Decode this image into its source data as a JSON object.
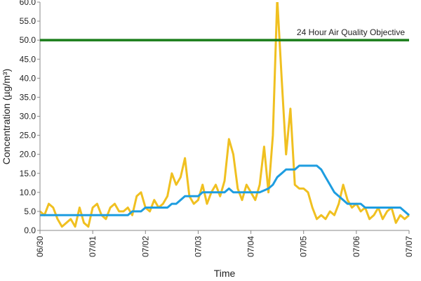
{
  "chart_data": {
    "type": "line",
    "ylabel": "Concentration (µg/m³)",
    "xlabel": "Time",
    "xlim": [
      0,
      168
    ],
    "xticks": [
      {
        "value": 0,
        "label": "06/30"
      },
      {
        "value": 24,
        "label": "07/01"
      },
      {
        "value": 48,
        "label": "07/02"
      },
      {
        "value": 72,
        "label": "07/03"
      },
      {
        "value": 96,
        "label": "07/04"
      },
      {
        "value": 120,
        "label": "07/05"
      },
      {
        "value": 144,
        "label": "07/06"
      },
      {
        "value": 168,
        "label": "07/07"
      }
    ],
    "ylim": [
      0,
      60
    ],
    "yticks": [
      {
        "value": 0,
        "label": "0.0"
      },
      {
        "value": 5,
        "label": "5.0"
      },
      {
        "value": 10,
        "label": "10.0"
      },
      {
        "value": 15,
        "label": "15.0"
      },
      {
        "value": 20,
        "label": "20.0"
      },
      {
        "value": 25,
        "label": "25.0"
      },
      {
        "value": 30,
        "label": "30.0"
      },
      {
        "value": 35,
        "label": "35.0"
      },
      {
        "value": 40,
        "label": "40.0"
      },
      {
        "value": 45,
        "label": "45.0"
      },
      {
        "value": 50,
        "label": "50.0"
      },
      {
        "value": 55,
        "label": "55.0"
      },
      {
        "value": 60,
        "label": "60.0"
      }
    ],
    "x": [
      0,
      2,
      4,
      6,
      8,
      10,
      12,
      14,
      16,
      18,
      20,
      22,
      24,
      26,
      28,
      30,
      32,
      34,
      36,
      38,
      40,
      42,
      44,
      46,
      48,
      50,
      52,
      54,
      56,
      58,
      60,
      62,
      64,
      66,
      68,
      70,
      72,
      74,
      76,
      78,
      80,
      82,
      84,
      86,
      88,
      90,
      92,
      94,
      96,
      98,
      100,
      102,
      104,
      106,
      108,
      110,
      112,
      114,
      116,
      118,
      120,
      122,
      124,
      126,
      128,
      130,
      132,
      134,
      136,
      138,
      140,
      142,
      144,
      146,
      148,
      150,
      152,
      154,
      156,
      158,
      160,
      162,
      164,
      166,
      168
    ],
    "series": [
      {
        "color": "#f0c020",
        "values": [
          5,
          4,
          7,
          6,
          3,
          1,
          2,
          3,
          1,
          6,
          2,
          1,
          6,
          7,
          4,
          3,
          6,
          7,
          5,
          5,
          6,
          4,
          9,
          10,
          6,
          5,
          8,
          6,
          7,
          9,
          15,
          12,
          14,
          19,
          9,
          7,
          8,
          12,
          7,
          10,
          12,
          9,
          13,
          24,
          20,
          11,
          8,
          12,
          10,
          8,
          12,
          22,
          10,
          25,
          61,
          40,
          20,
          32,
          12,
          11,
          11,
          10,
          6,
          3,
          4,
          3,
          5,
          4,
          7,
          12,
          8,
          6,
          7,
          5,
          6,
          3,
          4,
          6,
          3,
          5,
          6,
          2,
          4,
          3,
          4
        ]
      },
      {
        "color": "#1e9de0",
        "x": [
          0,
          40,
          42,
          46,
          48,
          58,
          60,
          62,
          64,
          66,
          72,
          74,
          84,
          86,
          88,
          100,
          104,
          106,
          108,
          110,
          112,
          116,
          118,
          126,
          128,
          130,
          132,
          134,
          136,
          138,
          140,
          146,
          148,
          164,
          166,
          168
        ],
        "values": [
          4,
          4,
          5,
          5,
          6,
          6,
          7,
          7,
          8,
          9,
          9,
          10,
          10,
          11,
          10,
          10,
          11,
          12,
          14,
          15,
          16,
          16,
          17,
          17,
          16,
          14,
          12,
          10,
          9,
          8,
          7,
          7,
          6,
          6,
          5,
          4
        ]
      }
    ],
    "reference_lines": [
      {
        "value": 50,
        "label": "24 Hour Air Quality Objective",
        "color": "#1a7d1a"
      }
    ]
  }
}
